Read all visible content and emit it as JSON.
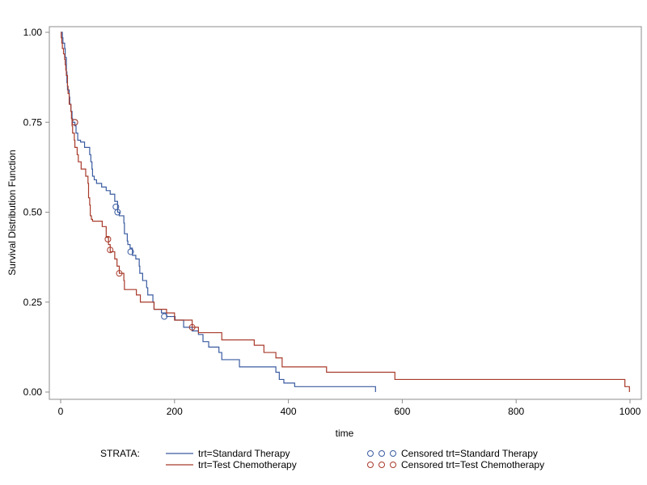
{
  "chart_data": {
    "type": "line",
    "step": true,
    "xlabel": "time",
    "ylabel": "Survival Distribution Function",
    "xlim": [
      0,
      1000
    ],
    "ylim": [
      0,
      1
    ],
    "x_ticks": [
      "0",
      "200",
      "400",
      "600",
      "800",
      "1000"
    ],
    "y_ticks": [
      "0.00",
      "0.25",
      "0.50",
      "0.75",
      "1.00"
    ],
    "grid": false,
    "legend": {
      "placement": "bottom",
      "title": "STRATA:",
      "line_entries": [
        "trt=Standard Therapy",
        "trt=Test Chemotherapy"
      ],
      "censor_entries": [
        "Censored trt=Standard Therapy",
        "Censored trt=Test Chemotherapy"
      ]
    },
    "series": [
      {
        "name": "trt=Standard Therapy",
        "color": "#3a5ba0",
        "points": [
          [
            0,
            1.0
          ],
          [
            3,
            0.985
          ],
          [
            4,
            0.97
          ],
          [
            7,
            0.955
          ],
          [
            8,
            0.93
          ],
          [
            10,
            0.89
          ],
          [
            11,
            0.86
          ],
          [
            12,
            0.84
          ],
          [
            15,
            0.82
          ],
          [
            16,
            0.8
          ],
          [
            18,
            0.78
          ],
          [
            20,
            0.76
          ],
          [
            21,
            0.75
          ],
          [
            25,
            0.74
          ],
          [
            27,
            0.72
          ],
          [
            30,
            0.7
          ],
          [
            35,
            0.695
          ],
          [
            42,
            0.68
          ],
          [
            51,
            0.66
          ],
          [
            53,
            0.64
          ],
          [
            55,
            0.62
          ],
          [
            56,
            0.6
          ],
          [
            59,
            0.59
          ],
          [
            63,
            0.58
          ],
          [
            72,
            0.57
          ],
          [
            80,
            0.56
          ],
          [
            87,
            0.55
          ],
          [
            95,
            0.53
          ],
          [
            100,
            0.5
          ],
          [
            103,
            0.49
          ],
          [
            111,
            0.47
          ],
          [
            112,
            0.44
          ],
          [
            117,
            0.42
          ],
          [
            118,
            0.41
          ],
          [
            122,
            0.4
          ],
          [
            126,
            0.38
          ],
          [
            132,
            0.37
          ],
          [
            138,
            0.35
          ],
          [
            139,
            0.33
          ],
          [
            144,
            0.31
          ],
          [
            151,
            0.29
          ],
          [
            153,
            0.27
          ],
          [
            162,
            0.25
          ],
          [
            164,
            0.23
          ],
          [
            177,
            0.22
          ],
          [
            186,
            0.21
          ],
          [
            201,
            0.2
          ],
          [
            216,
            0.18
          ],
          [
            231,
            0.17
          ],
          [
            242,
            0.16
          ],
          [
            250,
            0.14
          ],
          [
            260,
            0.125
          ],
          [
            278,
            0.11
          ],
          [
            283,
            0.09
          ],
          [
            314,
            0.07
          ],
          [
            378,
            0.055
          ],
          [
            384,
            0.035
          ],
          [
            392,
            0.025
          ],
          [
            411,
            0.015
          ],
          [
            553,
            0.0
          ]
        ],
        "censored": [
          [
            25,
            0.75
          ],
          [
            97,
            0.515
          ],
          [
            100,
            0.5
          ],
          [
            123,
            0.39
          ],
          [
            182,
            0.21
          ]
        ]
      },
      {
        "name": "trt=Test Chemotherapy",
        "color": "#a83a2a",
        "points": [
          [
            0,
            1.0
          ],
          [
            1,
            0.985
          ],
          [
            2,
            0.97
          ],
          [
            3,
            0.955
          ],
          [
            5,
            0.94
          ],
          [
            7,
            0.925
          ],
          [
            8,
            0.91
          ],
          [
            9,
            0.895
          ],
          [
            10,
            0.88
          ],
          [
            12,
            0.85
          ],
          [
            13,
            0.83
          ],
          [
            15,
            0.8
          ],
          [
            18,
            0.78
          ],
          [
            19,
            0.76
          ],
          [
            20,
            0.74
          ],
          [
            21,
            0.72
          ],
          [
            24,
            0.7
          ],
          [
            25,
            0.68
          ],
          [
            29,
            0.66
          ],
          [
            31,
            0.64
          ],
          [
            36,
            0.62
          ],
          [
            44,
            0.6
          ],
          [
            48,
            0.58
          ],
          [
            49,
            0.54
          ],
          [
            51,
            0.52
          ],
          [
            52,
            0.49
          ],
          [
            54,
            0.48
          ],
          [
            56,
            0.475
          ],
          [
            73,
            0.46
          ],
          [
            80,
            0.43
          ],
          [
            84,
            0.41
          ],
          [
            87,
            0.39
          ],
          [
            95,
            0.37
          ],
          [
            99,
            0.35
          ],
          [
            103,
            0.33
          ],
          [
            111,
            0.31
          ],
          [
            112,
            0.285
          ],
          [
            133,
            0.27
          ],
          [
            140,
            0.25
          ],
          [
            164,
            0.23
          ],
          [
            186,
            0.22
          ],
          [
            200,
            0.2
          ],
          [
            231,
            0.18
          ],
          [
            242,
            0.165
          ],
          [
            283,
            0.145
          ],
          [
            340,
            0.13
          ],
          [
            357,
            0.11
          ],
          [
            378,
            0.095
          ],
          [
            389,
            0.07
          ],
          [
            467,
            0.055
          ],
          [
            587,
            0.035
          ],
          [
            991,
            0.015
          ],
          [
            999,
            0.0
          ]
        ],
        "censored": [
          [
            25,
            0.75
          ],
          [
            83,
            0.425
          ],
          [
            87,
            0.395
          ],
          [
            103,
            0.33
          ],
          [
            231,
            0.18
          ]
        ]
      }
    ]
  }
}
